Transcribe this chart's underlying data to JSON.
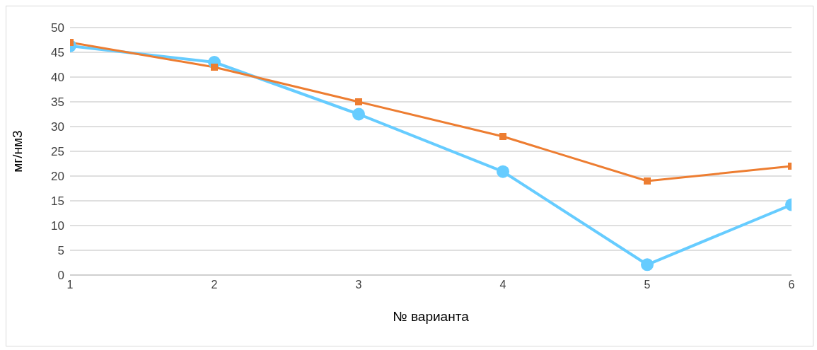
{
  "chart_data": {
    "type": "line",
    "xlabel": "№ варианта",
    "ylabel": "мг/нм3",
    "x": [
      1,
      2,
      3,
      4,
      5,
      6
    ],
    "xlim": [
      1,
      6
    ],
    "xticks": [
      1,
      2,
      3,
      4,
      5,
      6
    ],
    "ylim": [
      0,
      50
    ],
    "yticks": [
      0,
      5,
      10,
      15,
      20,
      25,
      30,
      35,
      40,
      45,
      50
    ],
    "grid": "y",
    "series": [
      {
        "color": "#66ccff",
        "marker": "circle",
        "values": [
          46.3,
          43.0,
          32.5,
          20.9,
          2.1,
          14.2
        ]
      },
      {
        "color": "#ed7d31",
        "marker": "square",
        "values": [
          47,
          42,
          35,
          28,
          19,
          22
        ]
      }
    ]
  }
}
